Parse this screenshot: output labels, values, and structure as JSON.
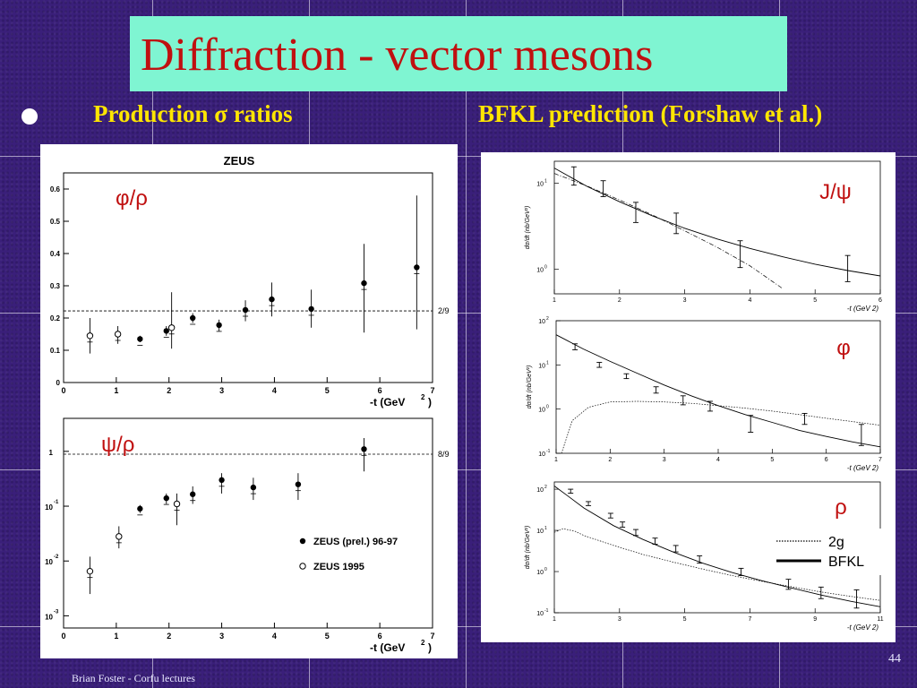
{
  "slide": {
    "title": "Diffraction - vector mesons",
    "bullet_left": "Production σ ratios",
    "bullet_right": "BFKL prediction (Forshaw et al.)",
    "footer_left": "Brian Foster - Corfu lectures",
    "page_number": "44"
  },
  "colors": {
    "title_bg": "#7ff5d2",
    "title_text": "#c01010",
    "subtitle": "#ffe600",
    "background": "#3a1f7a"
  },
  "chart_data": [
    {
      "type": "scatter",
      "title": "ZEUS",
      "label": "φ/ρ",
      "xlabel": "-t (GeV",
      "xlabel_sup": "2",
      "xlabel_end": ")",
      "xlim": [
        0,
        7
      ],
      "ylim": [
        0,
        0.65
      ],
      "xticks": [
        "0",
        "1",
        "2",
        "3",
        "4",
        "5",
        "6",
        "7"
      ],
      "yticks": [
        "0",
        "0.1",
        "0.2",
        "0.3",
        "0.4",
        "0.5",
        "0.6"
      ],
      "ref_line": {
        "y": 0.222,
        "label": "2/9"
      },
      "filled": [
        {
          "x": 1.45,
          "y": 0.135,
          "lo": 0.125,
          "hi": 0.145
        },
        {
          "x": 1.95,
          "y": 0.16,
          "lo": 0.145,
          "hi": 0.175
        },
        {
          "x": 2.45,
          "y": 0.2,
          "lo": 0.185,
          "hi": 0.215
        },
        {
          "x": 2.95,
          "y": 0.178,
          "lo": 0.16,
          "hi": 0.195
        },
        {
          "x": 3.45,
          "y": 0.225,
          "lo": 0.19,
          "hi": 0.255
        },
        {
          "x": 3.95,
          "y": 0.258,
          "lo": 0.205,
          "hi": 0.31
        },
        {
          "x": 4.7,
          "y": 0.228,
          "lo": 0.17,
          "hi": 0.288
        },
        {
          "x": 5.7,
          "y": 0.308,
          "lo": 0.155,
          "hi": 0.43
        },
        {
          "x": 6.7,
          "y": 0.357,
          "lo": 0.165,
          "hi": 0.58
        }
      ],
      "open": [
        {
          "x": 0.5,
          "y": 0.145,
          "lo": 0.09,
          "hi": 0.2
        },
        {
          "x": 1.03,
          "y": 0.15,
          "lo": 0.12,
          "hi": 0.175
        },
        {
          "x": 2.05,
          "y": 0.17,
          "lo": 0.105,
          "hi": 0.28
        }
      ]
    },
    {
      "type": "scatter",
      "label": "ψ/ρ",
      "xlabel": "-t (GeV",
      "xlabel_sup": "2",
      "xlabel_end": ")",
      "yscale": "log",
      "xlim": [
        0,
        7
      ],
      "ylim": [
        0.0006,
        4
      ],
      "xticks": [
        "0",
        "1",
        "2",
        "3",
        "4",
        "5",
        "6",
        "7"
      ],
      "yticks": [
        {
          "value": 1,
          "base": "1",
          "exp": ""
        },
        {
          "value": 0.1,
          "base": "10",
          "exp": "-1"
        },
        {
          "value": 0.01,
          "base": "10",
          "exp": "-2"
        },
        {
          "value": 0.001,
          "base": "10",
          "exp": "-3"
        }
      ],
      "ref_line": {
        "y": 0.889,
        "label": "8/9"
      },
      "legend": [
        {
          "marker": "filled",
          "label": "ZEUS (prel.) 96-97"
        },
        {
          "marker": "open",
          "label": "ZEUS 1995"
        }
      ],
      "filled": [
        {
          "x": 1.45,
          "y": 0.09,
          "lo": 0.075,
          "hi": 0.105
        },
        {
          "x": 1.95,
          "y": 0.14,
          "lo": 0.11,
          "hi": 0.17
        },
        {
          "x": 2.45,
          "y": 0.165,
          "lo": 0.11,
          "hi": 0.23
        },
        {
          "x": 3.0,
          "y": 0.3,
          "lo": 0.17,
          "hi": 0.4
        },
        {
          "x": 3.6,
          "y": 0.22,
          "lo": 0.13,
          "hi": 0.33
        },
        {
          "x": 4.45,
          "y": 0.25,
          "lo": 0.13,
          "hi": 0.4
        },
        {
          "x": 5.7,
          "y": 1.1,
          "lo": 0.43,
          "hi": 1.75
        }
      ],
      "open": [
        {
          "x": 0.5,
          "y": 0.0065,
          "lo": 0.0025,
          "hi": 0.012
        },
        {
          "x": 1.05,
          "y": 0.028,
          "lo": 0.017,
          "hi": 0.043
        },
        {
          "x": 2.15,
          "y": 0.11,
          "lo": 0.045,
          "hi": 0.17
        }
      ]
    },
    {
      "type": "line",
      "label": "J/ψ",
      "yscale": "log",
      "xlim": [
        1,
        6
      ],
      "ylim": [
        0.52,
        18
      ],
      "xticks": [
        "1",
        "2",
        "3",
        "4",
        "5",
        "6"
      ],
      "yticks": [
        {
          "value": 10,
          "base": "10",
          "exp": "1"
        },
        {
          "value": 1,
          "base": "10",
          "exp": "0"
        }
      ],
      "xlabel": "-t (GeV 2)",
      "ylabel": "dσ/dt (nb/GeV²)",
      "series": [
        {
          "style": "solid",
          "x": [
            1,
            1.5,
            2,
            2.5,
            3,
            3.5,
            4,
            4.5,
            5,
            5.5,
            6
          ],
          "y": [
            15,
            9.2,
            6.1,
            4.2,
            3.0,
            2.25,
            1.75,
            1.4,
            1.15,
            0.97,
            0.84
          ]
        },
        {
          "style": "dotdash",
          "x": [
            1,
            1.5,
            2,
            2.5,
            3,
            3.5,
            4,
            4.5
          ],
          "y": [
            13,
            9.3,
            6.4,
            4.3,
            2.8,
            1.8,
            1.1,
            0.6
          ]
        }
      ],
      "points": [
        {
          "x": 1.3,
          "y": 12,
          "lo": 9.5,
          "hi": 15.5
        },
        {
          "x": 1.75,
          "y": 8.6,
          "lo": 7,
          "hi": 10.7
        },
        {
          "x": 2.25,
          "y": 4.5,
          "lo": 3.5,
          "hi": 6
        },
        {
          "x": 2.87,
          "y": 3.4,
          "lo": 2.6,
          "hi": 4.5
        },
        {
          "x": 3.85,
          "y": 1.5,
          "lo": 1.05,
          "hi": 2.15
        },
        {
          "x": 5.5,
          "y": 0.98,
          "lo": 0.72,
          "hi": 1.45
        }
      ]
    },
    {
      "type": "line",
      "label": "φ",
      "yscale": "log",
      "xlim": [
        1,
        7
      ],
      "ylim": [
        0.1,
        100
      ],
      "xticks": [
        "1",
        "2",
        "3",
        "4",
        "5",
        "6",
        "7"
      ],
      "yticks": [
        {
          "value": 100,
          "base": "10",
          "exp": "2"
        },
        {
          "value": 10,
          "base": "10",
          "exp": "1"
        },
        {
          "value": 1,
          "base": "10",
          "exp": "0"
        },
        {
          "value": 0.1,
          "base": "10",
          "exp": "-1"
        }
      ],
      "xlabel": "-t (GeV 2)",
      "ylabel": "dσ/dt (nb/GeV²)",
      "series": [
        {
          "style": "solid",
          "x": [
            1,
            1.5,
            2,
            2.5,
            3,
            3.5,
            4,
            4.5,
            5,
            5.5,
            6,
            6.5,
            7
          ],
          "y": [
            48,
            23,
            12,
            6.5,
            3.5,
            2.0,
            1.2,
            0.75,
            0.5,
            0.33,
            0.24,
            0.18,
            0.14
          ]
        },
        {
          "style": "dotted",
          "x": [
            1.1,
            1.3,
            1.6,
            2,
            2.5,
            3,
            3.5,
            4,
            4.5,
            5,
            5.5,
            6,
            6.5,
            7
          ],
          "y": [
            0.1,
            0.55,
            1.1,
            1.45,
            1.5,
            1.45,
            1.35,
            1.2,
            1.05,
            0.9,
            0.75,
            0.62,
            0.52,
            0.43
          ]
        }
      ],
      "points": [
        {
          "x": 1.35,
          "y": 26,
          "lo": 22,
          "hi": 30
        },
        {
          "x": 1.8,
          "y": 10,
          "lo": 8.8,
          "hi": 11.4
        },
        {
          "x": 2.3,
          "y": 5.6,
          "lo": 4.9,
          "hi": 6.3
        },
        {
          "x": 2.85,
          "y": 2.7,
          "lo": 2.3,
          "hi": 3.2
        },
        {
          "x": 3.35,
          "y": 1.6,
          "lo": 1.25,
          "hi": 2.0
        },
        {
          "x": 3.85,
          "y": 1.15,
          "lo": 0.9,
          "hi": 1.5
        },
        {
          "x": 4.6,
          "y": 0.5,
          "lo": 0.3,
          "hi": 0.72
        },
        {
          "x": 5.6,
          "y": 0.6,
          "lo": 0.45,
          "hi": 0.8
        },
        {
          "x": 6.65,
          "y": 0.32,
          "lo": 0.15,
          "hi": 0.45
        }
      ]
    },
    {
      "type": "line",
      "label": "ρ",
      "yscale": "log",
      "xlim": [
        1,
        12
      ],
      "ylim": [
        0.1,
        150
      ],
      "xticks": [
        "1",
        "3",
        "5",
        "7",
        "9",
        "11"
      ],
      "yticks": [
        {
          "value": 100,
          "base": "10",
          "exp": "2"
        },
        {
          "value": 10,
          "base": "10",
          "exp": "1"
        },
        {
          "value": 1,
          "base": "10",
          "exp": "0"
        },
        {
          "value": 0.1,
          "base": "10",
          "exp": "-1"
        }
      ],
      "xlabel": "-t (GeV 2)",
      "ylabel": "dσ/dt (nb/GeV²)",
      "legend": [
        {
          "style": "dotted",
          "label": "2g"
        },
        {
          "style": "solid",
          "label": "BFKL"
        }
      ],
      "series": [
        {
          "style": "solid",
          "x": [
            1,
            1.5,
            2,
            3,
            4,
            5,
            6,
            7,
            8,
            9,
            10,
            11,
            12
          ],
          "y": [
            120,
            65,
            35,
            13,
            6,
            3,
            1.6,
            0.95,
            0.6,
            0.4,
            0.27,
            0.19,
            0.14
          ]
        },
        {
          "style": "dotted",
          "x": [
            1,
            1.3,
            1.7,
            2,
            3,
            4,
            5,
            6,
            7,
            8,
            9,
            10,
            11,
            12
          ],
          "y": [
            9,
            11,
            9.5,
            7.5,
            4.3,
            2.6,
            1.7,
            1.15,
            0.8,
            0.58,
            0.43,
            0.32,
            0.25,
            0.2
          ]
        }
      ],
      "points": [
        {
          "x": 1.55,
          "y": 90,
          "lo": 80,
          "hi": 100
        },
        {
          "x": 2.15,
          "y": 45,
          "lo": 40,
          "hi": 50
        },
        {
          "x": 2.9,
          "y": 23,
          "lo": 20,
          "hi": 26
        },
        {
          "x": 3.3,
          "y": 14,
          "lo": 12,
          "hi": 16
        },
        {
          "x": 3.75,
          "y": 9,
          "lo": 7.5,
          "hi": 10.5
        },
        {
          "x": 4.4,
          "y": 5.5,
          "lo": 4.6,
          "hi": 6.5
        },
        {
          "x": 5.1,
          "y": 3.6,
          "lo": 3.0,
          "hi": 4.3
        },
        {
          "x": 5.9,
          "y": 2.0,
          "lo": 1.6,
          "hi": 2.4
        },
        {
          "x": 7.3,
          "y": 1.0,
          "lo": 0.8,
          "hi": 1.2
        },
        {
          "x": 8.9,
          "y": 0.5,
          "lo": 0.37,
          "hi": 0.65
        },
        {
          "x": 10.0,
          "y": 0.32,
          "lo": 0.22,
          "hi": 0.42
        },
        {
          "x": 11.2,
          "y": 0.22,
          "lo": 0.13,
          "hi": 0.36
        }
      ]
    }
  ]
}
